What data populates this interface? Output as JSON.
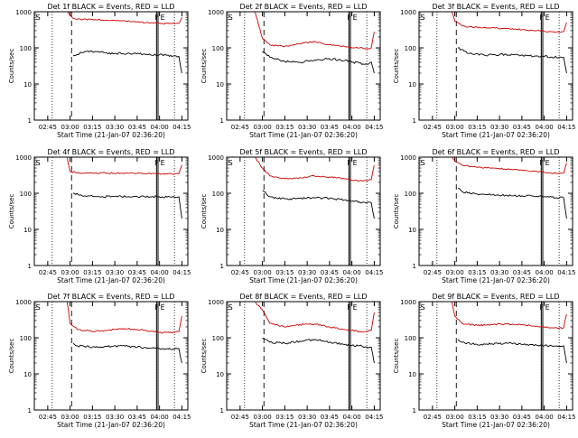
{
  "colors": {
    "background": "#ffffff",
    "axes": "#000000",
    "events": "#000000",
    "lld": "#cc0000"
  },
  "chart_data": [
    {
      "type": "line",
      "title": "Det 1f BLACK = Events, RED = LLD",
      "xlabel": "Start Time (21-Jan-07 02:36:20)",
      "ylabel": "Counts/sec",
      "yscale": "log",
      "ylim": [
        1,
        1000
      ],
      "xlim": [
        "02:36",
        "04:19"
      ],
      "xticks": [
        "02:45",
        "03:00",
        "03:15",
        "03:30",
        "03:45",
        "04:00",
        "04:15"
      ],
      "yticks": [
        "1",
        "10",
        "100",
        "1000"
      ],
      "markers": {
        "S": "02:37",
        "F": "03:58",
        "E": "04:00"
      },
      "dotted_lines": [
        "02:48",
        "03:58",
        "04:10"
      ],
      "dashed_line": "03:01",
      "solid_lines": [
        "03:58",
        "03:59"
      ],
      "series": [
        {
          "name": "Events",
          "color": "#000000",
          "x": [
            "03:02",
            "03:10",
            "03:20",
            "03:30",
            "03:40",
            "03:50",
            "03:55",
            "04:00",
            "04:05",
            "04:10",
            "04:13",
            "04:15"
          ],
          "y": [
            60,
            80,
            75,
            70,
            70,
            68,
            62,
            65,
            62,
            60,
            58,
            20
          ]
        },
        {
          "name": "LLD",
          "color": "#cc0000",
          "x": [
            "02:58",
            "03:00",
            "03:02",
            "03:05",
            "03:15",
            "03:25",
            "03:35",
            "03:45",
            "03:55",
            "04:00",
            "04:05",
            "04:10",
            "04:13",
            "04:15"
          ],
          "y": [
            1000,
            800,
            650,
            620,
            610,
            590,
            560,
            520,
            500,
            480,
            480,
            470,
            480,
            700
          ]
        }
      ]
    },
    {
      "type": "line",
      "title": "Det 2f BLACK = Events, RED = LLD",
      "xlabel": "Start Time (21-Jan-07 02:36:20)",
      "ylabel": "Counts/sec",
      "yscale": "log",
      "ylim": [
        1,
        1000
      ],
      "xlim": [
        "02:36",
        "04:19"
      ],
      "xticks": [
        "02:45",
        "03:00",
        "03:15",
        "03:30",
        "03:45",
        "04:00",
        "04:15"
      ],
      "yticks": [
        "1",
        "10",
        "100",
        "1000"
      ],
      "markers": {
        "S": "02:37",
        "F": "03:58",
        "E": "04:00"
      },
      "dotted_lines": [
        "02:48",
        "03:58",
        "04:10"
      ],
      "dashed_line": "03:01",
      "solid_lines": [
        "03:58",
        "03:59"
      ],
      "series": [
        {
          "name": "Events",
          "color": "#000000",
          "x": [
            "03:00",
            "03:05",
            "03:15",
            "03:25",
            "03:35",
            "03:45",
            "03:55",
            "04:00",
            "04:05",
            "04:10",
            "04:13",
            "04:15"
          ],
          "y": [
            80,
            55,
            42,
            40,
            46,
            50,
            45,
            40,
            38,
            35,
            40,
            20
          ]
        },
        {
          "name": "LLD",
          "color": "#cc0000",
          "x": [
            "02:55",
            "03:00",
            "03:05",
            "03:15",
            "03:25",
            "03:35",
            "03:45",
            "03:55",
            "04:00",
            "04:05",
            "04:10",
            "04:13",
            "04:15"
          ],
          "y": [
            1000,
            180,
            120,
            110,
            130,
            150,
            120,
            110,
            100,
            100,
            95,
            100,
            280
          ]
        }
      ]
    },
    {
      "type": "line",
      "title": "Det 3f BLACK = Events, RED = LLD",
      "xlabel": "Start Time (21-Jan-07 02:36:20)",
      "ylabel": "Counts/sec",
      "yscale": "log",
      "ylim": [
        1,
        1000
      ],
      "xlim": [
        "02:36",
        "04:19"
      ],
      "xticks": [
        "02:45",
        "03:00",
        "03:15",
        "03:30",
        "03:45",
        "04:00",
        "04:15"
      ],
      "yticks": [
        "1",
        "10",
        "100",
        "1000"
      ],
      "markers": {
        "S": "02:37",
        "F": "03:58",
        "E": "04:00"
      },
      "dotted_lines": [
        "02:48",
        "03:58",
        "04:10"
      ],
      "dashed_line": "03:01",
      "solid_lines": [
        "03:58",
        "03:59"
      ],
      "series": [
        {
          "name": "Events",
          "color": "#000000",
          "x": [
            "03:02",
            "03:10",
            "03:20",
            "03:30",
            "03:40",
            "03:50",
            "04:00",
            "04:05",
            "04:10",
            "04:13",
            "04:15"
          ],
          "y": [
            100,
            70,
            62,
            65,
            65,
            60,
            58,
            56,
            55,
            55,
            20
          ]
        },
        {
          "name": "LLD",
          "color": "#cc0000",
          "x": [
            "02:58",
            "03:00",
            "03:05",
            "03:15",
            "03:25",
            "03:35",
            "03:45",
            "03:55",
            "04:00",
            "04:05",
            "04:10",
            "04:13",
            "04:15"
          ],
          "y": [
            1000,
            550,
            400,
            370,
            360,
            340,
            320,
            300,
            290,
            280,
            270,
            280,
            500
          ]
        }
      ]
    },
    {
      "type": "line",
      "title": "Det 4f BLACK = Events, RED = LLD",
      "xlabel": "Start Time (21-Jan-07 02:36:20)",
      "ylabel": "Counts/sec",
      "yscale": "log",
      "ylim": [
        1,
        1000
      ],
      "xlim": [
        "02:36",
        "04:19"
      ],
      "xticks": [
        "02:45",
        "03:00",
        "03:15",
        "03:30",
        "03:45",
        "04:00",
        "04:15"
      ],
      "yticks": [
        "1",
        "10",
        "100",
        "1000"
      ],
      "markers": {
        "S": "02:37",
        "F": "03:58",
        "E": "04:00"
      },
      "dotted_lines": [
        "02:48",
        "03:58",
        "04:10"
      ],
      "dashed_line": "03:01",
      "solid_lines": [
        "03:58",
        "03:59"
      ],
      "series": [
        {
          "name": "Events",
          "color": "#000000",
          "x": [
            "03:02",
            "03:10",
            "03:20",
            "03:30",
            "03:40",
            "03:50",
            "04:00",
            "04:05",
            "04:10",
            "04:13",
            "04:15"
          ],
          "y": [
            100,
            85,
            80,
            82,
            80,
            80,
            80,
            78,
            78,
            80,
            20
          ]
        },
        {
          "name": "LLD",
          "color": "#cc0000",
          "x": [
            "02:58",
            "03:00",
            "03:05",
            "03:15",
            "03:25",
            "03:35",
            "03:45",
            "03:55",
            "04:00",
            "04:05",
            "04:10",
            "04:13",
            "04:15"
          ],
          "y": [
            1000,
            400,
            370,
            360,
            360,
            360,
            355,
            350,
            350,
            340,
            340,
            350,
            600
          ]
        }
      ]
    },
    {
      "type": "line",
      "title": "Det 5f BLACK = Events, RED = LLD",
      "xlabel": "Start Time (21-Jan-07 02:36:20)",
      "ylabel": "Counts/sec",
      "yscale": "log",
      "ylim": [
        1,
        1000
      ],
      "xlim": [
        "02:36",
        "04:19"
      ],
      "xticks": [
        "02:45",
        "03:00",
        "03:15",
        "03:30",
        "03:45",
        "04:00",
        "04:15"
      ],
      "yticks": [
        "1",
        "10",
        "100",
        "1000"
      ],
      "markers": {
        "S": "02:37",
        "F": "03:58",
        "E": "04:00"
      },
      "dotted_lines": [
        "02:48",
        "03:58",
        "04:10"
      ],
      "dashed_line": "03:01",
      "solid_lines": [
        "03:58",
        "03:59"
      ],
      "series": [
        {
          "name": "Events",
          "color": "#000000",
          "x": [
            "03:00",
            "03:05",
            "03:15",
            "03:25",
            "03:35",
            "03:45",
            "03:55",
            "04:00",
            "04:05",
            "04:10",
            "04:13",
            "04:15"
          ],
          "y": [
            120,
            80,
            70,
            72,
            75,
            72,
            65,
            60,
            58,
            55,
            55,
            20
          ]
        },
        {
          "name": "LLD",
          "color": "#cc0000",
          "x": [
            "02:55",
            "03:00",
            "03:05",
            "03:15",
            "03:25",
            "03:35",
            "03:45",
            "03:55",
            "04:00",
            "04:05",
            "04:10",
            "04:13",
            "04:15"
          ],
          "y": [
            1000,
            500,
            300,
            250,
            270,
            300,
            280,
            250,
            230,
            220,
            220,
            240,
            600
          ]
        }
      ]
    },
    {
      "type": "line",
      "title": "Det 6f BLACK = Events, RED = LLD",
      "xlabel": "Start Time (21-Jan-07 02:36:20)",
      "ylabel": "Counts/sec",
      "yscale": "log",
      "ylim": [
        1,
        1000
      ],
      "xlim": [
        "02:36",
        "04:19"
      ],
      "xticks": [
        "02:45",
        "03:00",
        "03:15",
        "03:30",
        "03:45",
        "04:00",
        "04:15"
      ],
      "yticks": [
        "1",
        "10",
        "100",
        "1000"
      ],
      "markers": {
        "S": "02:37",
        "F": "03:58",
        "E": "04:00"
      },
      "dotted_lines": [
        "02:48",
        "03:58",
        "04:10"
      ],
      "dashed_line": "03:01",
      "solid_lines": [
        "03:58",
        "03:59"
      ],
      "series": [
        {
          "name": "Events",
          "color": "#000000",
          "x": [
            "03:02",
            "03:05",
            "03:15",
            "03:25",
            "03:35",
            "03:45",
            "03:55",
            "04:00",
            "04:05",
            "04:10",
            "04:13",
            "04:15"
          ],
          "y": [
            140,
            110,
            95,
            90,
            88,
            85,
            82,
            80,
            78,
            75,
            75,
            20
          ]
        },
        {
          "name": "LLD",
          "color": "#cc0000",
          "x": [
            "02:58",
            "03:00",
            "03:05",
            "03:15",
            "03:25",
            "03:35",
            "03:45",
            "03:55",
            "04:00",
            "04:05",
            "04:10",
            "04:13",
            "04:15"
          ],
          "y": [
            1000,
            800,
            600,
            520,
            500,
            460,
            430,
            400,
            380,
            360,
            350,
            360,
            700
          ]
        }
      ]
    },
    {
      "type": "line",
      "title": "Det 7f BLACK = Events, RED = LLD",
      "xlabel": "Start Time (21-Jan-07 02:36:20)",
      "ylabel": "Counts/sec",
      "yscale": "log",
      "ylim": [
        1,
        1000
      ],
      "xlim": [
        "02:36",
        "04:19"
      ],
      "xticks": [
        "02:45",
        "03:00",
        "03:15",
        "03:30",
        "03:45",
        "04:00",
        "04:15"
      ],
      "yticks": [
        "1",
        "10",
        "100",
        "1000"
      ],
      "markers": {
        "S": "02:37",
        "F": "03:58",
        "E": "04:00"
      },
      "dotted_lines": [
        "02:48",
        "03:58",
        "04:10"
      ],
      "dashed_line": "03:01",
      "solid_lines": [
        "03:58",
        "03:59"
      ],
      "series": [
        {
          "name": "Events",
          "color": "#000000",
          "x": [
            "03:02",
            "03:05",
            "03:15",
            "03:25",
            "03:35",
            "03:45",
            "03:55",
            "04:00",
            "04:05",
            "04:10",
            "04:13",
            "04:15"
          ],
          "y": [
            70,
            60,
            55,
            58,
            60,
            55,
            52,
            50,
            50,
            48,
            50,
            20
          ]
        },
        {
          "name": "LLD",
          "color": "#cc0000",
          "x": [
            "02:58",
            "03:00",
            "03:05",
            "03:15",
            "03:25",
            "03:35",
            "03:45",
            "03:55",
            "04:00",
            "04:05",
            "04:10",
            "04:13",
            "04:15"
          ],
          "y": [
            1000,
            250,
            170,
            150,
            160,
            180,
            170,
            150,
            140,
            140,
            140,
            150,
            400
          ]
        }
      ]
    },
    {
      "type": "line",
      "title": "Det 8f BLACK = Events, RED = LLD",
      "xlabel": "Start Time (21-Jan-07 02:36:20)",
      "ylabel": "Counts/sec",
      "yscale": "log",
      "ylim": [
        1,
        1000
      ],
      "xlim": [
        "02:36",
        "04:19"
      ],
      "xticks": [
        "02:45",
        "03:00",
        "03:15",
        "03:30",
        "03:45",
        "04:00",
        "04:15"
      ],
      "yticks": [
        "1",
        "10",
        "100",
        "1000"
      ],
      "markers": {
        "S": "02:37",
        "F": "03:58",
        "E": "04:00"
      },
      "dotted_lines": [
        "02:48",
        "03:58",
        "04:10"
      ],
      "dashed_line": "03:01",
      "solid_lines": [
        "03:58",
        "03:59"
      ],
      "series": [
        {
          "name": "Events",
          "color": "#000000",
          "x": [
            "03:00",
            "03:05",
            "03:15",
            "03:25",
            "03:35",
            "03:45",
            "03:55",
            "04:00",
            "04:05",
            "04:10",
            "04:13",
            "04:15"
          ],
          "y": [
            100,
            75,
            70,
            80,
            90,
            75,
            65,
            62,
            60,
            55,
            55,
            20
          ]
        },
        {
          "name": "LLD",
          "color": "#cc0000",
          "x": [
            "02:55",
            "03:00",
            "03:05",
            "03:15",
            "03:25",
            "03:35",
            "03:45",
            "03:55",
            "04:00",
            "04:05",
            "04:10",
            "04:13",
            "04:15"
          ],
          "y": [
            1000,
            600,
            250,
            200,
            230,
            240,
            200,
            170,
            160,
            150,
            150,
            160,
            500
          ]
        }
      ]
    },
    {
      "type": "line",
      "title": "Det 9f BLACK = Events, RED = LLD",
      "xlabel": "Start Time (21-Jan-07 02:36:20)",
      "ylabel": "Counts/sec",
      "yscale": "log",
      "ylim": [
        1,
        1000
      ],
      "xlim": [
        "02:36",
        "04:19"
      ],
      "xticks": [
        "02:45",
        "03:00",
        "03:15",
        "03:30",
        "03:45",
        "04:00",
        "04:15"
      ],
      "yticks": [
        "1",
        "10",
        "100",
        "1000"
      ],
      "markers": {
        "S": "02:37",
        "F": "03:58",
        "E": "04:00"
      },
      "dotted_lines": [
        "02:48",
        "03:58",
        "04:10"
      ],
      "dashed_line": "03:01",
      "solid_lines": [
        "03:58",
        "03:59"
      ],
      "series": [
        {
          "name": "Events",
          "color": "#000000",
          "x": [
            "03:02",
            "03:05",
            "03:15",
            "03:25",
            "03:35",
            "03:45",
            "03:55",
            "04:00",
            "04:05",
            "04:10",
            "04:13",
            "04:15"
          ],
          "y": [
            90,
            75,
            65,
            68,
            70,
            65,
            62,
            60,
            60,
            58,
            60,
            20
          ]
        },
        {
          "name": "LLD",
          "color": "#cc0000",
          "x": [
            "02:58",
            "03:00",
            "03:05",
            "03:15",
            "03:25",
            "03:35",
            "03:45",
            "03:55",
            "04:00",
            "04:05",
            "04:10",
            "04:13",
            "04:15"
          ],
          "y": [
            1000,
            400,
            250,
            220,
            230,
            240,
            230,
            210,
            200,
            190,
            185,
            190,
            450
          ]
        }
      ]
    }
  ]
}
